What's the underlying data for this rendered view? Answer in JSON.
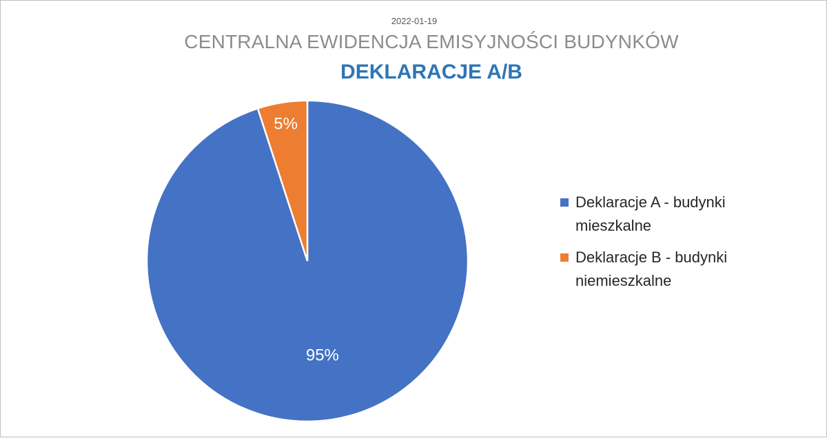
{
  "header": {
    "date": "2022-01-19",
    "title": "CENTRALNA EWIDENCJA EMISYJNOŚCI BUDYNKÓW",
    "subtitle": "DEKLARACJE A/B"
  },
  "colors": {
    "series_a": "#4472c4",
    "series_b": "#ed7d31",
    "subtitle": "#2e75b6",
    "title": "#8c8c8c"
  },
  "chart_data": {
    "type": "pie",
    "title": "DEKLARACJE A/B",
    "legend_position": "right",
    "categories": [
      "Deklaracje A - budynki mieszkalne",
      "Deklaracje B - budynki niemieszkalne"
    ],
    "values": [
      95,
      5
    ],
    "data_labels": [
      "95%",
      "5%"
    ],
    "colors": [
      "#4472c4",
      "#ed7d31"
    ]
  },
  "legend": {
    "items": [
      {
        "label": "Deklaracje A - budynki mieszkalne",
        "color": "#4472c4"
      },
      {
        "label": "Deklaracje B - budynki niemieszkalne",
        "color": "#ed7d31"
      }
    ]
  }
}
